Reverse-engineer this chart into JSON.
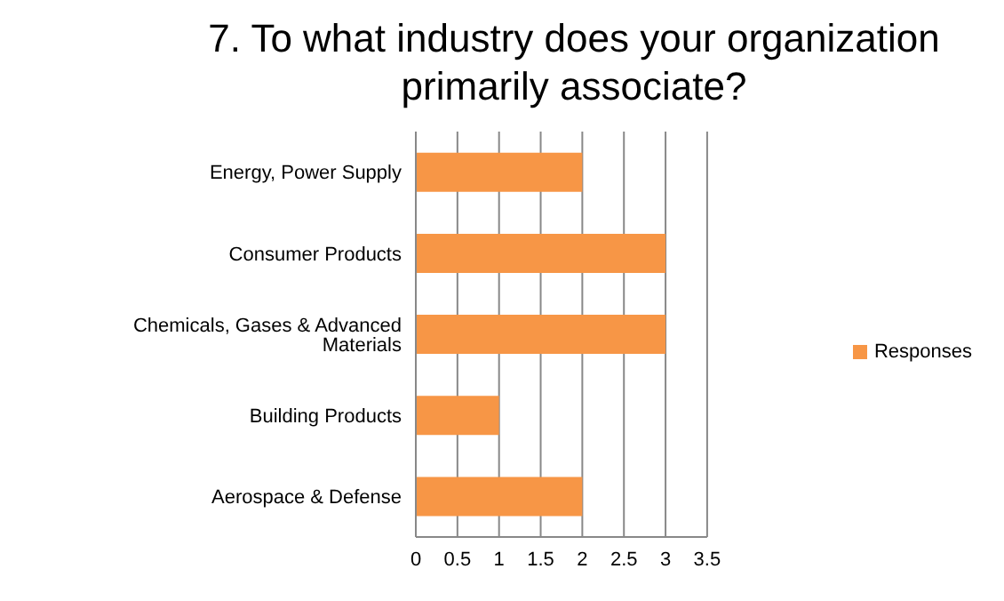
{
  "chart_data": {
    "type": "bar",
    "orientation": "horizontal",
    "title": "7. To what industry does your organization primarily associate?",
    "categories": [
      "Energy, Power Supply",
      "Consumer Products",
      "Chemicals, Gases & Advanced Materials",
      "Building Products",
      "Aerospace & Defense"
    ],
    "series": [
      {
        "name": "Responses",
        "color": "#f79646",
        "values": [
          2,
          3,
          3,
          1,
          2
        ]
      }
    ],
    "xlim": [
      0,
      3.5
    ],
    "xticks": [
      0,
      0.5,
      1,
      1.5,
      2,
      2.5,
      3,
      3.5
    ],
    "grid": "x",
    "legend": "right"
  }
}
